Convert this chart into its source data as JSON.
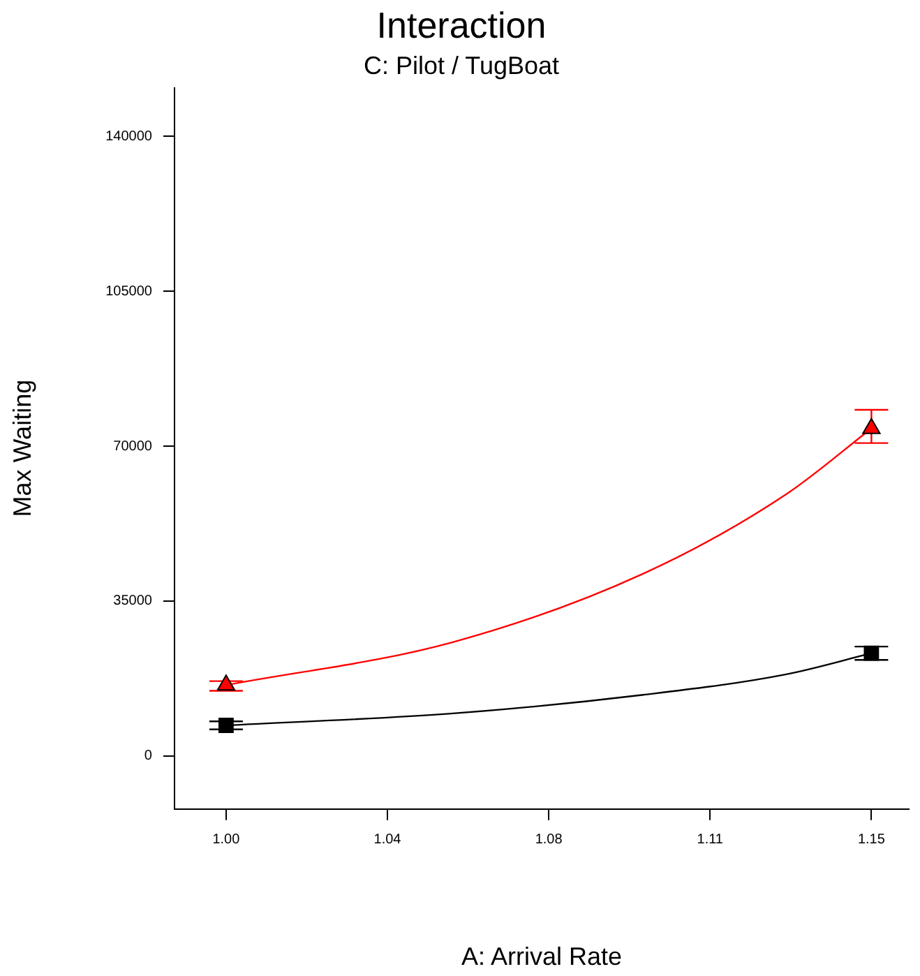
{
  "chart_data": {
    "type": "scatter",
    "title": "Interaction",
    "subtitle": "C: Pilot / TugBoat",
    "xlabel": "A: Arrival Rate",
    "ylabel": "Max Waiting",
    "xlim": [
      0.988,
      1.1587
    ],
    "xticks": [
      {
        "value": 1.0,
        "label": "1.00"
      },
      {
        "value": 1.0375,
        "label": "1.04"
      },
      {
        "value": 1.075,
        "label": "1.08"
      },
      {
        "value": 1.1125,
        "label": "1.11"
      },
      {
        "value": 1.15,
        "label": "1.15"
      }
    ],
    "ylim": [
      -12000,
      151000
    ],
    "yticks": [
      0,
      35000,
      70000,
      105000,
      140000
    ],
    "grid": false,
    "legend": false,
    "series": [
      {
        "type": "line",
        "color": "#ff0000",
        "marker": "none",
        "x": [
          1.0,
          1.0527,
          1.097,
          1.13,
          1.15
        ],
        "values": [
          16000,
          25700,
          41200,
          59000,
          74000
        ]
      },
      {
        "type": "line",
        "color": "#000000",
        "marker": "none",
        "x": [
          1.0,
          1.0527,
          1.097,
          1.13,
          1.15
        ],
        "values": [
          6900,
          9600,
          13800,
          18400,
          23200
        ]
      },
      {
        "type": "scatter",
        "color": "#ff0000",
        "marker": "triangle",
        "x": [
          1.0,
          1.15
        ],
        "values": [
          16000,
          74000
        ],
        "errors": [
          [
            14700,
            16900
          ],
          [
            70700,
            78200
          ]
        ]
      },
      {
        "type": "scatter",
        "color": "#000000",
        "marker": "square",
        "x": [
          1.0,
          1.15
        ],
        "values": [
          6900,
          23200
        ],
        "errors": [
          [
            6000,
            7800
          ],
          [
            21700,
            24700
          ]
        ]
      }
    ]
  }
}
